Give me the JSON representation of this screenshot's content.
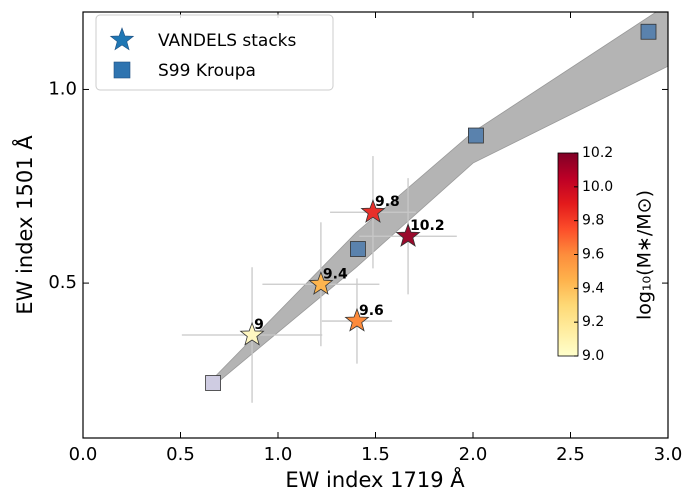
{
  "chart_data": {
    "type": "scatter",
    "xlabel": "EW index 1719 Å",
    "ylabel": "EW index 1501 Å",
    "xlim": [
      0,
      3.0
    ],
    "ylim": [
      0.1,
      1.2
    ],
    "xticks": [
      {
        "value": 0,
        "label": "0.0"
      },
      0.5,
      {
        "value": 1,
        "label": "1.0"
      },
      1.5,
      {
        "value": 2,
        "label": "2.0"
      },
      2.5,
      {
        "value": 3,
        "label": "3.0"
      }
    ],
    "yticks": [
      0.5,
      {
        "value": 1,
        "label": "1.0"
      }
    ],
    "legend": "upper left",
    "band": {
      "color": "#b4b4b4",
      "x": [
        0.67,
        1.4,
        2.0,
        3.0
      ],
      "lower": [
        0.235,
        0.54,
        0.81,
        1.06
      ],
      "upper": [
        0.255,
        0.63,
        0.89,
        1.22
      ]
    },
    "series": [
      {
        "name": "VANDELS stacks",
        "marker": "star",
        "color": "#1f77b4",
        "x": [
          0.867,
          1.22,
          1.405,
          1.487,
          1.667
        ],
        "values": [
          0.366,
          0.497,
          0.402,
          0.683,
          0.621
        ],
        "xerr": [
          0.36,
          0.3,
          0.18,
          0.22,
          0.25
        ],
        "yerr": [
          0.175,
          0.16,
          0.11,
          0.145,
          0.15
        ],
        "labels": [
          9,
          9.4,
          9.6,
          9.8,
          10.2
        ],
        "point_colors": [
          "#fff7c2",
          "#feb54e",
          "#fd8a3b",
          "#e7302a",
          "#9a0a2c"
        ]
      },
      {
        "name": "S99 Kroupa",
        "marker": "square",
        "color": "#2f74b0",
        "x": [
          0.667,
          1.41,
          2.015,
          2.9
        ],
        "values": [
          0.242,
          0.588,
          0.881,
          1.149
        ],
        "point_colors": [
          "#cfcce2",
          "#5a82ad",
          "#5a82ad",
          "#5a82ad"
        ]
      }
    ],
    "colorbar": {
      "label": "log₁₀(M∗/M⊙)",
      "clim": [
        9.0,
        10.2
      ],
      "ticks": [
        {
          "value": 9,
          "label": "9.0"
        },
        9.2,
        9.4,
        9.6,
        9.8,
        {
          "value": 10,
          "label": "10.0"
        },
        10.2
      ],
      "colors": [
        "#ffffcc",
        "#ffeda0",
        "#fed976",
        "#feb24c",
        "#fd8d3c",
        "#fc4e2a",
        "#e31a1c",
        "#bd0026",
        "#800026"
      ]
    }
  }
}
